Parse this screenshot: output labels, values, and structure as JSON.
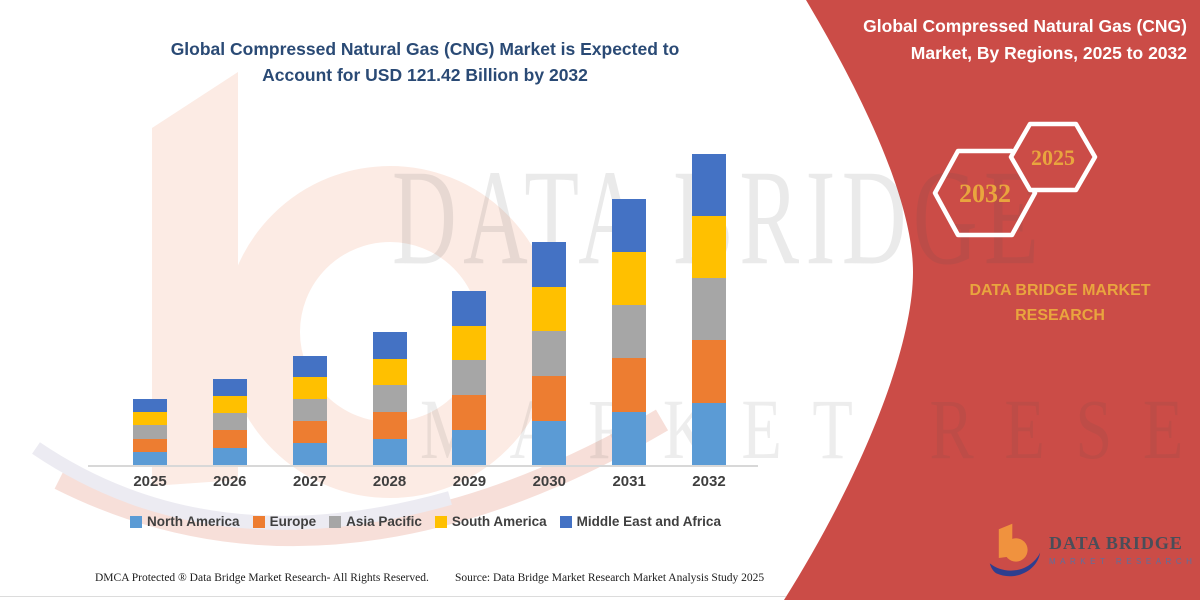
{
  "main_title": {
    "line1": "Global Compressed Natural Gas (CNG) Market is Expected to",
    "line2": "Account for USD 121.42 Billion by 2032"
  },
  "chart_data": {
    "type": "bar",
    "stacked": true,
    "title": "Global Compressed Natural Gas (CNG) Market is Expected to Account for USD 121.42 Billion by 2032",
    "unit": "USD Billion",
    "categories": [
      "2025",
      "2026",
      "2027",
      "2028",
      "2029",
      "2030",
      "2031",
      "2032"
    ],
    "series": [
      {
        "name": "North America",
        "color": "#5b9bd5",
        "values": [
          5.4,
          7.0,
          8.8,
          10.6,
          13.9,
          17.6,
          21.0,
          24.5
        ]
      },
      {
        "name": "Europe",
        "color": "#ed7d31",
        "values": [
          5.3,
          6.9,
          8.7,
          10.5,
          13.8,
          17.5,
          21.0,
          24.4
        ]
      },
      {
        "name": "Asia Pacific",
        "color": "#a6a6a6",
        "values": [
          5.2,
          6.8,
          8.6,
          10.4,
          13.6,
          17.4,
          20.8,
          24.3
        ]
      },
      {
        "name": "South America",
        "color": "#ffc000",
        "values": [
          5.1,
          6.7,
          8.5,
          10.3,
          13.4,
          17.2,
          20.6,
          24.1
        ]
      },
      {
        "name": "Middle East and Africa",
        "color": "#4472c4",
        "values": [
          5.0,
          6.6,
          8.4,
          10.2,
          13.3,
          17.3,
          20.6,
          24.12
        ]
      }
    ],
    "totals": [
      26.0,
      34.0,
      43.0,
      52.0,
      68.0,
      87.0,
      104.0,
      121.42
    ],
    "ylim": [
      0,
      125
    ],
    "grid": false,
    "axis_line_color": "#d8d8d8",
    "legend_position": "bottom",
    "xlabel": "",
    "ylabel": ""
  },
  "footer": {
    "dmca": "DMCA Protected ® Data Bridge Market Research-  All Rights Reserved.",
    "source": "Source: Data Bridge Market Research  Market Analysis Study 2025"
  },
  "side_panel": {
    "background_color": "#cb4c47",
    "accent_color": "#e9a53e",
    "title": "Global Compressed Natural Gas (CNG) Market, By Regions, 2025 to 2032",
    "hexagons": [
      {
        "label": "2032"
      },
      {
        "label": "2025"
      }
    ],
    "brand_line1": "DATA BRIDGE MARKET",
    "brand_line2": "RESEARCH"
  },
  "logo": {
    "name": "DATA BRIDGE",
    "subtitle": "MARKET RESEARCH"
  },
  "watermarks": {
    "big_text": "DATA BRIDGE",
    "sub_text": "MARKET RESEARCH"
  }
}
